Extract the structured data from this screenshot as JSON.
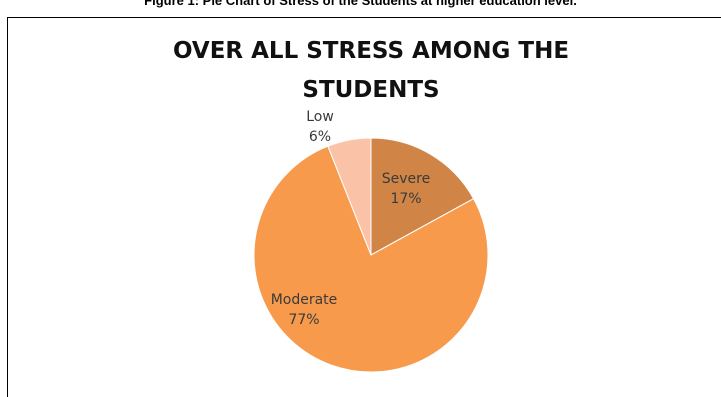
{
  "caption": "Figure 1: Pie Chart of Stress of the Students at higher education level.",
  "chart_data": {
    "type": "pie",
    "title": "OVER ALL STRESS AMONG THE STUDENTS",
    "title_lines": [
      "OVER ALL STRESS AMONG THE",
      "STUDENTS"
    ],
    "start_angle_deg": 0,
    "direction": "clockwise",
    "slices": [
      {
        "label": "Severe",
        "value": 17,
        "display": "17%",
        "color": "#D08547"
      },
      {
        "label": "Moderate",
        "value": 77,
        "display": "77%",
        "color": "#F79A4C"
      },
      {
        "label": "Low",
        "value": 6,
        "display": "6%",
        "color": "#FAC3A8"
      }
    ],
    "legend": "none",
    "data_labels": "category and percentage"
  }
}
